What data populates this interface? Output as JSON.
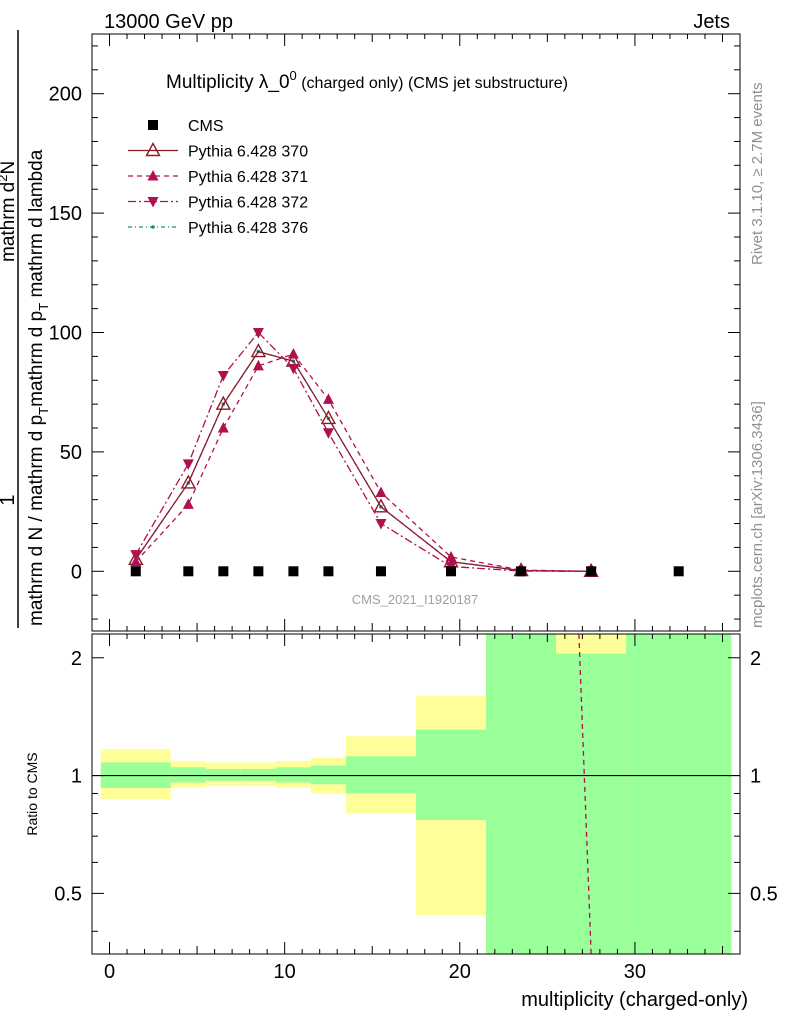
{
  "header": {
    "left": "13000 GeV pp",
    "right": "Jets"
  },
  "side_labels": {
    "rivet": "Rivet 3.1.10, ≥ 2.7M events",
    "mcplots": "mcplots.cern.ch [arXiv:1306.3436]"
  },
  "watermark": "CMS_2021_I1920187",
  "colors": {
    "cms": "#000000",
    "p370": "#8b1a2b",
    "p371": "#b0104f",
    "p372": "#b0104f",
    "p376": "#0f8f7f",
    "band_yellow": "#ffff99",
    "band_green": "#99ff99"
  },
  "chart_data": [
    {
      "type": "line",
      "title_main": "Multiplicity λ_0",
      "title_sup": "0",
      "title_rest": " (charged only) (CMS jet substructure)",
      "ylabel_top": "1",
      "ylabel_den": "mathrm d N / mathrm d p",
      "ylabel_den_sub": "T",
      "ylabel_den2": "mathrm d p",
      "ylabel_den2_sub": "T",
      "ylabel_den3": " mathrm d lambda",
      "ylabel_num": "mathrm d",
      "ylabel_num_sup": "2",
      "ylabel_num2": "N",
      "xlim": [
        -1,
        36
      ],
      "ylim": [
        -25,
        225
      ],
      "yticks": [
        "0",
        "50",
        "100",
        "150",
        "200"
      ],
      "legend": [
        {
          "name": "CMS",
          "marker": "square",
          "dash": "none"
        },
        {
          "name": "Pythia 6.428 370",
          "marker": "triangle-open",
          "dash": "solid"
        },
        {
          "name": "Pythia 6.428 371",
          "marker": "triangle",
          "dash": "5,4"
        },
        {
          "name": "Pythia 6.428 372",
          "marker": "triangle-down",
          "dash": "8,3,2,3"
        },
        {
          "name": "Pythia 6.428 376",
          "marker": "dot",
          "dash": "4,3,1,3"
        }
      ],
      "series": [
        {
          "name": "CMS",
          "x": [
            1.5,
            4.5,
            6.5,
            8.5,
            10.5,
            12.5,
            15.5,
            19.5,
            23.5,
            27.5,
            32.5
          ],
          "y": [
            0,
            0,
            0,
            0,
            0,
            0,
            0,
            0,
            0,
            0,
            0
          ]
        },
        {
          "name": "Pythia 6.428 370",
          "x": [
            1.5,
            4.5,
            6.5,
            8.5,
            10.5,
            12.5,
            15.5,
            19.5,
            23.5,
            27.5
          ],
          "y": [
            5,
            37,
            70,
            92,
            88,
            64,
            27,
            4,
            0.3,
            0
          ]
        },
        {
          "name": "Pythia 6.428 371",
          "x": [
            1.5,
            4.5,
            6.5,
            8.5,
            10.5,
            12.5,
            15.5,
            19.5,
            23.5,
            27.5
          ],
          "y": [
            4,
            28,
            60,
            86,
            91,
            72,
            33,
            6,
            0.5,
            0
          ]
        },
        {
          "name": "Pythia 6.428 372",
          "x": [
            1.5,
            4.5,
            6.5,
            8.5,
            10.5,
            12.5,
            15.5,
            19.5,
            23.5,
            27.5
          ],
          "y": [
            7,
            45,
            82,
            100,
            85,
            58,
            20,
            2,
            0.1,
            0
          ]
        },
        {
          "name": "Pythia 6.428 376",
          "x": [
            1.5,
            4.5,
            6.5,
            8.5,
            10.5,
            12.5,
            15.5,
            19.5,
            23.5,
            27.5
          ],
          "y": [
            5,
            37,
            70,
            92,
            88,
            64,
            27,
            4,
            0.3,
            0
          ]
        }
      ]
    },
    {
      "type": "area",
      "xlabel": "multiplicity (charged-only)",
      "ylabel": "Ratio to CMS",
      "xlim": [
        -1,
        36
      ],
      "ylim": [
        0.35,
        2.3
      ],
      "xticks": [
        "0",
        "10",
        "20",
        "30"
      ],
      "yticks": [
        "0.5",
        "1",
        "2"
      ],
      "reference_line": 1,
      "bins": [
        {
          "x0": -0.5,
          "x1": 3.5,
          "yellow": [
            0.87,
            1.17
          ],
          "green": [
            0.93,
            1.08
          ]
        },
        {
          "x0": 3.5,
          "x1": 5.5,
          "yellow": [
            0.93,
            1.09
          ],
          "green": [
            0.96,
            1.05
          ]
        },
        {
          "x0": 5.5,
          "x1": 7.5,
          "yellow": [
            0.94,
            1.08
          ],
          "green": [
            0.97,
            1.04
          ]
        },
        {
          "x0": 7.5,
          "x1": 9.5,
          "yellow": [
            0.94,
            1.08
          ],
          "green": [
            0.97,
            1.04
          ]
        },
        {
          "x0": 9.5,
          "x1": 11.5,
          "yellow": [
            0.93,
            1.09
          ],
          "green": [
            0.96,
            1.05
          ]
        },
        {
          "x0": 11.5,
          "x1": 13.5,
          "yellow": [
            0.9,
            1.11
          ],
          "green": [
            0.95,
            1.06
          ]
        },
        {
          "x0": 13.5,
          "x1": 17.5,
          "yellow": [
            0.8,
            1.26
          ],
          "green": [
            0.9,
            1.12
          ]
        },
        {
          "x0": 17.5,
          "x1": 21.5,
          "yellow": [
            0.44,
            1.6
          ],
          "green": [
            0.77,
            1.31
          ]
        },
        {
          "x0": 21.5,
          "x1": 25.5,
          "yellow": [
            0.35,
            2.3
          ],
          "green": [
            0.35,
            2.3
          ]
        },
        {
          "x0": 25.5,
          "x1": 29.5,
          "yellow": [
            0.35,
            2.3
          ],
          "green": [
            0.35,
            2.05
          ]
        },
        {
          "x0": 29.5,
          "x1": 35.5,
          "yellow": [
            0.35,
            2.3
          ],
          "green": [
            0.35,
            2.3
          ]
        }
      ],
      "ratio_line": {
        "x": [
          26.8,
          27.5
        ],
        "y": [
          2.3,
          0.35
        ]
      }
    }
  ]
}
